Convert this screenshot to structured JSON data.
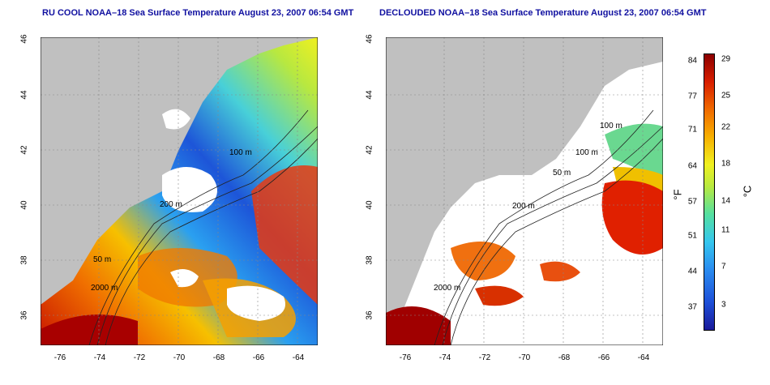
{
  "panels": [
    {
      "title": "RU COOL NOAA–18 Sea Surface Temperature August 23, 2007 06:54 GMT"
    },
    {
      "title": "DECLOUDED NOAA–18 Sea Surface Temperature August 23, 2007 06:54 GMT"
    }
  ],
  "axes": {
    "lat_ticks": [
      "46",
      "44",
      "42",
      "40",
      "38",
      "36"
    ],
    "lon_ticks": [
      "-76",
      "-74",
      "-72",
      "-70",
      "-68",
      "-66",
      "-64"
    ]
  },
  "contours": [
    "200 m",
    "100 m",
    "50 m",
    "2000 m",
    "100 m",
    "50 m"
  ],
  "colorbar": {
    "fahrenheit": [
      "84",
      "77",
      "71",
      "64",
      "57",
      "51",
      "44",
      "37"
    ],
    "celsius": [
      "29",
      "25",
      "22",
      "18",
      "14",
      "11",
      "7",
      "3"
    ],
    "unit_f": "°F",
    "unit_c": "°C"
  }
}
